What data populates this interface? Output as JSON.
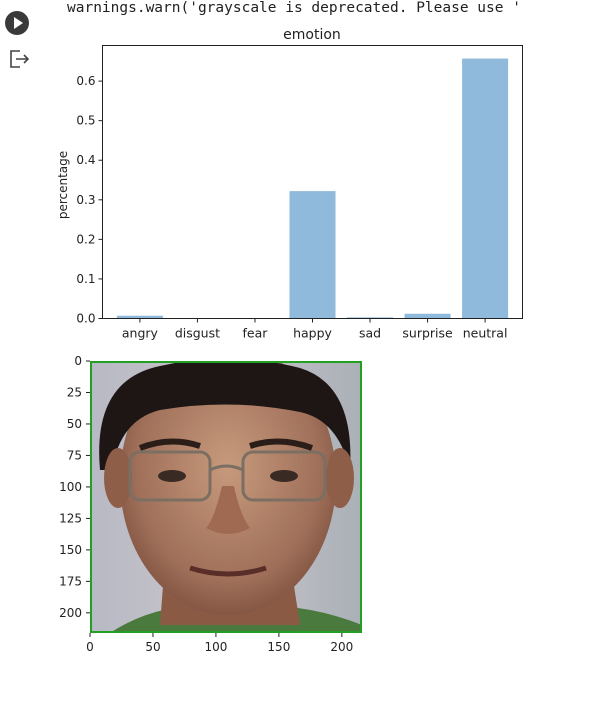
{
  "cell": {
    "run_button_icon": "play-icon",
    "output_icon": "output-redirect-icon",
    "warning_text": "warnings.warn('grayscale is deprecated. Please use '"
  },
  "chart_data": [
    {
      "type": "bar",
      "title": "emotion",
      "xlabel": "",
      "ylabel": "percentage",
      "categories": [
        "angry",
        "disgust",
        "fear",
        "happy",
        "sad",
        "surprise",
        "neutral"
      ],
      "values": [
        0.007,
        0.0,
        0.0,
        0.322,
        0.003,
        0.012,
        0.657
      ],
      "ylim": [
        0,
        0.69
      ],
      "yticks": [
        "0.0",
        "0.1",
        "0.2",
        "0.3",
        "0.4",
        "0.5",
        "0.6"
      ],
      "bar_color": "#8fbadb",
      "grid": false
    },
    {
      "type": "image",
      "content": "face photograph with green bounding box",
      "xticks": [
        "0",
        "50",
        "100",
        "150",
        "200"
      ],
      "yticks": [
        "0",
        "25",
        "50",
        "75",
        "100",
        "125",
        "150",
        "175",
        "200"
      ],
      "xlim": [
        0,
        216
      ],
      "ylim": [
        0,
        216
      ],
      "box_color": "#22a022"
    }
  ]
}
